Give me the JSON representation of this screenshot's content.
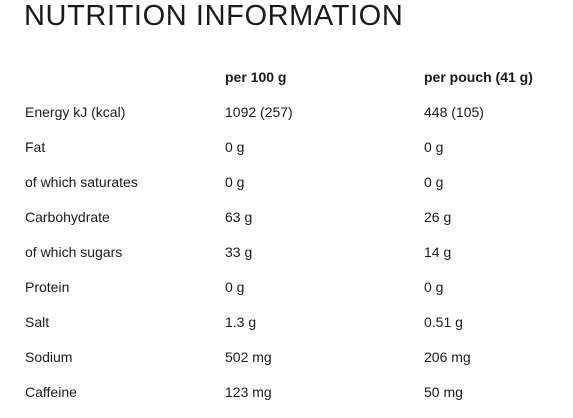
{
  "title": "NUTRITION INFORMATION",
  "columns": {
    "per_100g": "per 100 g",
    "per_pouch": "per pouch (41 g)"
  },
  "rows": [
    {
      "label": "Energy kJ (kcal)",
      "per_100g": "1092 (257)",
      "per_pouch": "448 (105)"
    },
    {
      "label": "Fat",
      "per_100g": "0 g",
      "per_pouch": "0 g"
    },
    {
      "label": "of which saturates",
      "per_100g": "0 g",
      "per_pouch": "0 g"
    },
    {
      "label": "Carbohydrate",
      "per_100g": "63 g",
      "per_pouch": "26 g"
    },
    {
      "label": "of which sugars",
      "per_100g": "33 g",
      "per_pouch": "14 g"
    },
    {
      "label": "Protein",
      "per_100g": "0 g",
      "per_pouch": "0 g"
    },
    {
      "label": "Salt",
      "per_100g": "1.3 g",
      "per_pouch": "0.51 g"
    },
    {
      "label": "Sodium",
      "per_100g": "502 mg",
      "per_pouch": "206 mg"
    },
    {
      "label": "Caffeine",
      "per_100g": "123 mg",
      "per_pouch": "50 mg"
    }
  ]
}
